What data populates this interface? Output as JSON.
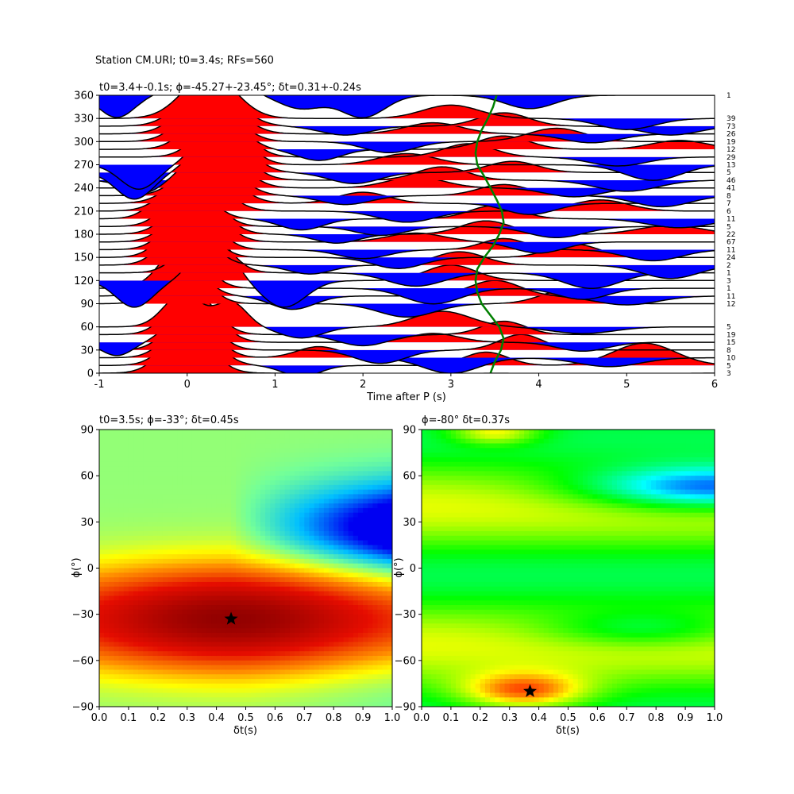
{
  "suptitle": "Station CM.URI; t0=3.4s; RFs=560",
  "chart_data": [
    {
      "type": "line",
      "title": "t0=3.4+-0.1s; ϕ=-45.27+-23.45°; δt=0.31+-0.24s",
      "xlabel": "Time after P (s)",
      "ylabel": "",
      "xlim": [
        -1,
        6
      ],
      "ylim": [
        0,
        360
      ],
      "xticks": [
        "-1",
        "0",
        "1",
        "2",
        "3",
        "4",
        "5",
        "6"
      ],
      "yticks": [
        "0",
        "30",
        "60",
        "90",
        "120",
        "150",
        "180",
        "210",
        "240",
        "270",
        "300",
        "330",
        "360"
      ],
      "positive_fill": "#ff0000",
      "negative_fill": "#0000ff",
      "trace_color": "#000000",
      "delay_curve_color": "#008000",
      "traces": [
        {
          "baz": 0,
          "count": "3",
          "amp": 14,
          "peaks": [
            {
              "t": 0.0,
              "a": 1.0,
              "w": 0.36
            },
            {
              "t": 2.5,
              "a": -0.32,
              "w": 0.4
            },
            {
              "t": 4.7,
              "a": -0.2,
              "w": 0.5
            }
          ]
        },
        {
          "baz": 10,
          "count": "5",
          "amp": 14,
          "peaks": [
            {
              "t": 0.05,
              "a": 1.0,
              "w": 0.36
            },
            {
              "t": 1.3,
              "a": -0.25,
              "w": 0.3
            },
            {
              "t": 3.4,
              "a": 0.3,
              "w": 0.35
            },
            {
              "t": 5.2,
              "a": 0.5,
              "w": 0.5
            }
          ]
        },
        {
          "baz": 20,
          "count": "10",
          "amp": 14,
          "peaks": [
            {
              "t": 0.05,
              "a": 1.0,
              "w": 0.35
            },
            {
              "t": 1.5,
              "a": 0.25,
              "w": 0.35
            },
            {
              "t": 3.0,
              "a": -0.35,
              "w": 0.45
            },
            {
              "t": 4.8,
              "a": -0.2,
              "w": 0.5
            }
          ]
        },
        {
          "baz": 30,
          "count": "8",
          "amp": 14,
          "peaks": [
            {
              "t": 0.05,
              "a": 1.0,
              "w": 0.34
            },
            {
              "t": 2.2,
              "a": -0.3,
              "w": 0.4
            },
            {
              "t": 3.8,
              "a": 0.35,
              "w": 0.35
            }
          ]
        },
        {
          "baz": 40,
          "count": "15",
          "amp": 14,
          "peaks": [
            {
              "t": 0.1,
              "a": 1.0,
              "w": 0.35
            },
            {
              "t": -0.8,
              "a": -0.3,
              "w": 0.25
            },
            {
              "t": 2.8,
              "a": 0.2,
              "w": 0.4
            },
            {
              "t": 4.5,
              "a": -0.2,
              "w": 0.4
            }
          ]
        },
        {
          "baz": 50,
          "count": "19",
          "amp": 14,
          "peaks": [
            {
              "t": 0.05,
              "a": 1.0,
              "w": 0.35
            },
            {
              "t": 2.0,
              "a": -0.25,
              "w": 0.4
            },
            {
              "t": 3.6,
              "a": 0.3,
              "w": 0.35
            }
          ]
        },
        {
          "baz": 60,
          "count": "5",
          "amp": 14,
          "peaks": [
            {
              "t": -0.05,
              "a": 0.75,
              "w": 0.3
            },
            {
              "t": 0.5,
              "a": 0.55,
              "w": 0.25
            },
            {
              "t": 1.3,
              "a": -0.25,
              "w": 0.35
            },
            {
              "t": 2.9,
              "a": 0.35,
              "w": 0.45
            },
            {
              "t": 4.5,
              "a": -0.15,
              "w": 0.5
            }
          ]
        },
        {
          "baz": 90,
          "count": "12",
          "amp": 14,
          "peaks": [
            {
              "t": -0.05,
              "a": 1.0,
              "w": 0.34
            },
            {
              "t": 2.5,
              "a": -0.3,
              "w": 0.45
            },
            {
              "t": 4.3,
              "a": 0.3,
              "w": 0.4
            }
          ]
        },
        {
          "baz": 100,
          "count": "11",
          "amp": 14,
          "peaks": [
            {
              "t": -0.1,
              "a": 1.0,
              "w": 0.34
            },
            {
              "t": 1.2,
              "a": -0.3,
              "w": 0.35
            },
            {
              "t": 3.5,
              "a": 0.35,
              "w": 0.4
            },
            {
              "t": 5.0,
              "a": -0.2,
              "w": 0.5
            }
          ]
        },
        {
          "baz": 110,
          "count": "1",
          "amp": 14,
          "peaks": [
            {
              "t": -0.05,
              "a": 1.0,
              "w": 0.34
            },
            {
              "t": 2.8,
              "a": -0.35,
              "w": 0.45
            },
            {
              "t": 4.5,
              "a": -0.25,
              "w": 0.4
            }
          ]
        },
        {
          "baz": 120,
          "count": "3",
          "amp": 14,
          "peaks": [
            {
              "t": 0.3,
              "a": 1.0,
              "w": 0.3
            },
            {
              "t": -0.6,
              "a": -0.6,
              "w": 0.3
            },
            {
              "t": 1.1,
              "a": -0.6,
              "w": 0.35
            },
            {
              "t": 3.0,
              "a": 0.35,
              "w": 0.4
            }
          ]
        },
        {
          "baz": 130,
          "count": "1",
          "amp": 14,
          "peaks": [
            {
              "t": 0.2,
              "a": 1.0,
              "w": 0.35
            },
            {
              "t": 2.6,
              "a": -0.3,
              "w": 0.45
            },
            {
              "t": 4.6,
              "a": -0.35,
              "w": 0.45
            }
          ]
        },
        {
          "baz": 140,
          "count": "2",
          "amp": 14,
          "peaks": [
            {
              "t": 0.0,
              "a": 1.0,
              "w": 0.35
            },
            {
              "t": 1.4,
              "a": -0.2,
              "w": 0.35
            },
            {
              "t": 3.1,
              "a": 0.3,
              "w": 0.4
            },
            {
              "t": 5.5,
              "a": -0.3,
              "w": 0.45
            }
          ]
        },
        {
          "baz": 150,
          "count": "24",
          "amp": 14,
          "peaks": [
            {
              "t": 0.0,
              "a": 1.0,
              "w": 0.35
            },
            {
              "t": 2.4,
              "a": -0.25,
              "w": 0.4
            },
            {
              "t": 4.4,
              "a": 0.3,
              "w": 0.4
            }
          ]
        },
        {
          "baz": 160,
          "count": "11",
          "amp": 14,
          "peaks": [
            {
              "t": 0.05,
              "a": 1.0,
              "w": 0.36
            },
            {
              "t": 2.0,
              "a": -0.2,
              "w": 0.4
            },
            {
              "t": 3.6,
              "a": 0.25,
              "w": 0.35
            },
            {
              "t": 5.3,
              "a": -0.25,
              "w": 0.45
            }
          ]
        },
        {
          "baz": 170,
          "count": "67",
          "amp": 14,
          "peaks": [
            {
              "t": 0.1,
              "a": 1.0,
              "w": 0.38
            },
            {
              "t": 2.6,
              "a": 0.2,
              "w": 0.45
            },
            {
              "t": 4.0,
              "a": -0.25,
              "w": 0.4
            }
          ]
        },
        {
          "baz": 180,
          "count": "22",
          "amp": 14,
          "peaks": [
            {
              "t": 0.1,
              "a": 1.0,
              "w": 0.38
            },
            {
              "t": 1.7,
              "a": -0.2,
              "w": 0.35
            },
            {
              "t": 3.4,
              "a": 0.3,
              "w": 0.4
            },
            {
              "t": 5.5,
              "a": 0.2,
              "w": 0.5
            }
          ]
        },
        {
          "baz": 190,
          "count": "5",
          "amp": 14,
          "peaks": [
            {
              "t": 0.05,
              "a": 1.0,
              "w": 0.36
            },
            {
              "t": 2.2,
              "a": -0.2,
              "w": 0.4
            },
            {
              "t": 4.2,
              "a": -0.25,
              "w": 0.45
            }
          ]
        },
        {
          "baz": 200,
          "count": "11",
          "amp": 14,
          "peaks": [
            {
              "t": -0.05,
              "a": 1.0,
              "w": 0.36
            },
            {
              "t": 1.3,
              "a": -0.25,
              "w": 0.35
            },
            {
              "t": 3.5,
              "a": 0.3,
              "w": 0.4
            },
            {
              "t": 5.6,
              "a": -0.2,
              "w": 0.5
            }
          ]
        },
        {
          "baz": 210,
          "count": "6",
          "amp": 14,
          "peaks": [
            {
              "t": 0.1,
              "a": 1.0,
              "w": 0.4
            },
            {
              "t": 2.5,
              "a": -0.25,
              "w": 0.45
            },
            {
              "t": 4.7,
              "a": 0.25,
              "w": 0.45
            }
          ]
        },
        {
          "baz": 220,
          "count": "7",
          "amp": 14,
          "peaks": [
            {
              "t": 0.2,
              "a": 1.0,
              "w": 0.42
            },
            {
              "t": 2.0,
              "a": 0.25,
              "w": 0.4
            },
            {
              "t": 3.9,
              "a": -0.25,
              "w": 0.4
            }
          ]
        },
        {
          "baz": 230,
          "count": "8",
          "amp": 14,
          "peaks": [
            {
              "t": 0.25,
              "a": 1.0,
              "w": 0.4
            },
            {
              "t": 1.8,
              "a": -0.2,
              "w": 0.4
            },
            {
              "t": 3.6,
              "a": 0.25,
              "w": 0.4
            },
            {
              "t": 5.4,
              "a": -0.25,
              "w": 0.45
            }
          ]
        },
        {
          "baz": 240,
          "count": "41",
          "amp": 14,
          "peaks": [
            {
              "t": 0.3,
              "a": 1.0,
              "w": 0.4
            },
            {
              "t": 2.6,
              "a": 0.25,
              "w": 0.45
            },
            {
              "t": 4.4,
              "a": -0.2,
              "w": 0.45
            }
          ]
        },
        {
          "baz": 250,
          "count": "46",
          "amp": 14,
          "peaks": [
            {
              "t": 0.35,
              "a": 1.0,
              "w": 0.4
            },
            {
              "t": -0.5,
              "a": -0.3,
              "w": 0.3
            },
            {
              "t": 2.9,
              "a": 0.3,
              "w": 0.4
            },
            {
              "t": 5.0,
              "a": -0.25,
              "w": 0.5
            }
          ]
        },
        {
          "baz": 260,
          "count": "5",
          "amp": 14,
          "peaks": [
            {
              "t": 0.4,
              "a": 1.0,
              "w": 0.38
            },
            {
              "t": -0.6,
              "a": -0.6,
              "w": 0.3
            },
            {
              "t": 1.9,
              "a": -0.25,
              "w": 0.4
            },
            {
              "t": 3.7,
              "a": 0.25,
              "w": 0.4
            }
          ]
        },
        {
          "baz": 270,
          "count": "13",
          "amp": 14,
          "peaks": [
            {
              "t": 0.4,
              "a": 1.0,
              "w": 0.36
            },
            {
              "t": -0.55,
              "a": -0.55,
              "w": 0.3
            },
            {
              "t": 2.5,
              "a": 0.25,
              "w": 0.45
            },
            {
              "t": 5.3,
              "a": -0.35,
              "w": 0.45
            }
          ]
        },
        {
          "baz": 280,
          "count": "29",
          "amp": 14,
          "peaks": [
            {
              "t": 0.4,
              "a": 1.0,
              "w": 0.36
            },
            {
              "t": 3.2,
              "a": 0.3,
              "w": 0.4
            },
            {
              "t": 4.9,
              "a": -0.2,
              "w": 0.45
            }
          ]
        },
        {
          "baz": 290,
          "count": "12",
          "amp": 14,
          "peaks": [
            {
              "t": 0.3,
              "a": 1.0,
              "w": 0.38
            },
            {
              "t": 1.5,
              "a": -0.25,
              "w": 0.35
            },
            {
              "t": 3.6,
              "a": 0.3,
              "w": 0.4
            },
            {
              "t": 5.6,
              "a": 0.2,
              "w": 0.45
            }
          ]
        },
        {
          "baz": 300,
          "count": "19",
          "amp": 14,
          "peaks": [
            {
              "t": 0.25,
              "a": 1.0,
              "w": 0.4
            },
            {
              "t": 2.3,
              "a": -0.25,
              "w": 0.4
            },
            {
              "t": 4.2,
              "a": 0.3,
              "w": 0.45
            }
          ]
        },
        {
          "baz": 310,
          "count": "26",
          "amp": 14,
          "peaks": [
            {
              "t": 0.25,
              "a": 1.0,
              "w": 0.42
            },
            {
              "t": 2.8,
              "a": 0.25,
              "w": 0.45
            },
            {
              "t": 4.6,
              "a": -0.2,
              "w": 0.45
            }
          ]
        },
        {
          "baz": 320,
          "count": "73",
          "amp": 14,
          "peaks": [
            {
              "t": 0.25,
              "a": 1.0,
              "w": 0.42
            },
            {
              "t": 1.8,
              "a": -0.2,
              "w": 0.4
            },
            {
              "t": 3.6,
              "a": 0.3,
              "w": 0.4
            },
            {
              "t": 5.5,
              "a": -0.2,
              "w": 0.45
            }
          ]
        },
        {
          "baz": 330,
          "count": "39",
          "amp": 14,
          "peaks": [
            {
              "t": 0.25,
              "a": 1.0,
              "w": 0.42
            },
            {
              "t": 3.0,
              "a": 0.3,
              "w": 0.45
            },
            {
              "t": 5.0,
              "a": -0.25,
              "w": 0.45
            }
          ]
        },
        {
          "baz": 360,
          "count": "1",
          "amp": 14,
          "peaks": [
            {
              "t": 0.25,
              "a": 1.0,
              "w": 0.38
            },
            {
              "t": -0.8,
              "a": -0.5,
              "w": 0.28
            },
            {
              "t": 1.3,
              "a": -0.3,
              "w": 0.35
            },
            {
              "t": 2.0,
              "a": -0.5,
              "w": 0.35
            },
            {
              "t": 3.9,
              "a": -0.3,
              "w": 0.4
            }
          ]
        }
      ],
      "delay_curve": [
        {
          "baz": 0,
          "t": 3.45
        },
        {
          "baz": 15,
          "t": 3.5
        },
        {
          "baz": 30,
          "t": 3.57
        },
        {
          "baz": 45,
          "t": 3.6
        },
        {
          "baz": 60,
          "t": 3.55
        },
        {
          "baz": 75,
          "t": 3.45
        },
        {
          "baz": 90,
          "t": 3.35
        },
        {
          "baz": 105,
          "t": 3.3
        },
        {
          "baz": 120,
          "t": 3.28
        },
        {
          "baz": 135,
          "t": 3.3
        },
        {
          "baz": 150,
          "t": 3.38
        },
        {
          "baz": 165,
          "t": 3.48
        },
        {
          "baz": 180,
          "t": 3.55
        },
        {
          "baz": 195,
          "t": 3.6
        },
        {
          "baz": 210,
          "t": 3.58
        },
        {
          "baz": 225,
          "t": 3.52
        },
        {
          "baz": 240,
          "t": 3.45
        },
        {
          "baz": 255,
          "t": 3.38
        },
        {
          "baz": 270,
          "t": 3.3
        },
        {
          "baz": 285,
          "t": 3.28
        },
        {
          "baz": 300,
          "t": 3.3
        },
        {
          "baz": 315,
          "t": 3.35
        },
        {
          "baz": 330,
          "t": 3.42
        },
        {
          "baz": 345,
          "t": 3.48
        },
        {
          "baz": 360,
          "t": 3.52
        }
      ]
    },
    {
      "type": "heatmap",
      "title": "t0=3.5s; ϕ=-33°; δt=0.45s",
      "xlabel": "δt(s)",
      "ylabel": "ϕ(°)",
      "xlim": [
        0,
        1
      ],
      "ylim": [
        -90,
        90
      ],
      "xticks": [
        "0.0",
        "0.1",
        "0.2",
        "0.3",
        "0.4",
        "0.5",
        "0.6",
        "0.7",
        "0.8",
        "0.9",
        "1.0"
      ],
      "yticks": [
        "−90",
        "−60",
        "−30",
        "0",
        "30",
        "60",
        "90"
      ],
      "colormap": "hot_r",
      "optimum": {
        "dt": 0.45,
        "phi": -33
      }
    },
    {
      "type": "heatmap",
      "title": "ϕ=-80° δt=0.37s",
      "xlabel": "δt(s)",
      "ylabel": "ϕ(°)",
      "xlim": [
        0,
        1
      ],
      "ylim": [
        -90,
        90
      ],
      "xticks": [
        "0.0",
        "0.1",
        "0.2",
        "0.3",
        "0.4",
        "0.5",
        "0.6",
        "0.7",
        "0.8",
        "0.9",
        "1.0"
      ],
      "yticks": [
        "−90",
        "−60",
        "−30",
        "0",
        "30",
        "60",
        "90"
      ],
      "colormap": "gist_rainbow",
      "optimum": {
        "dt": 0.37,
        "phi": -80
      }
    }
  ]
}
